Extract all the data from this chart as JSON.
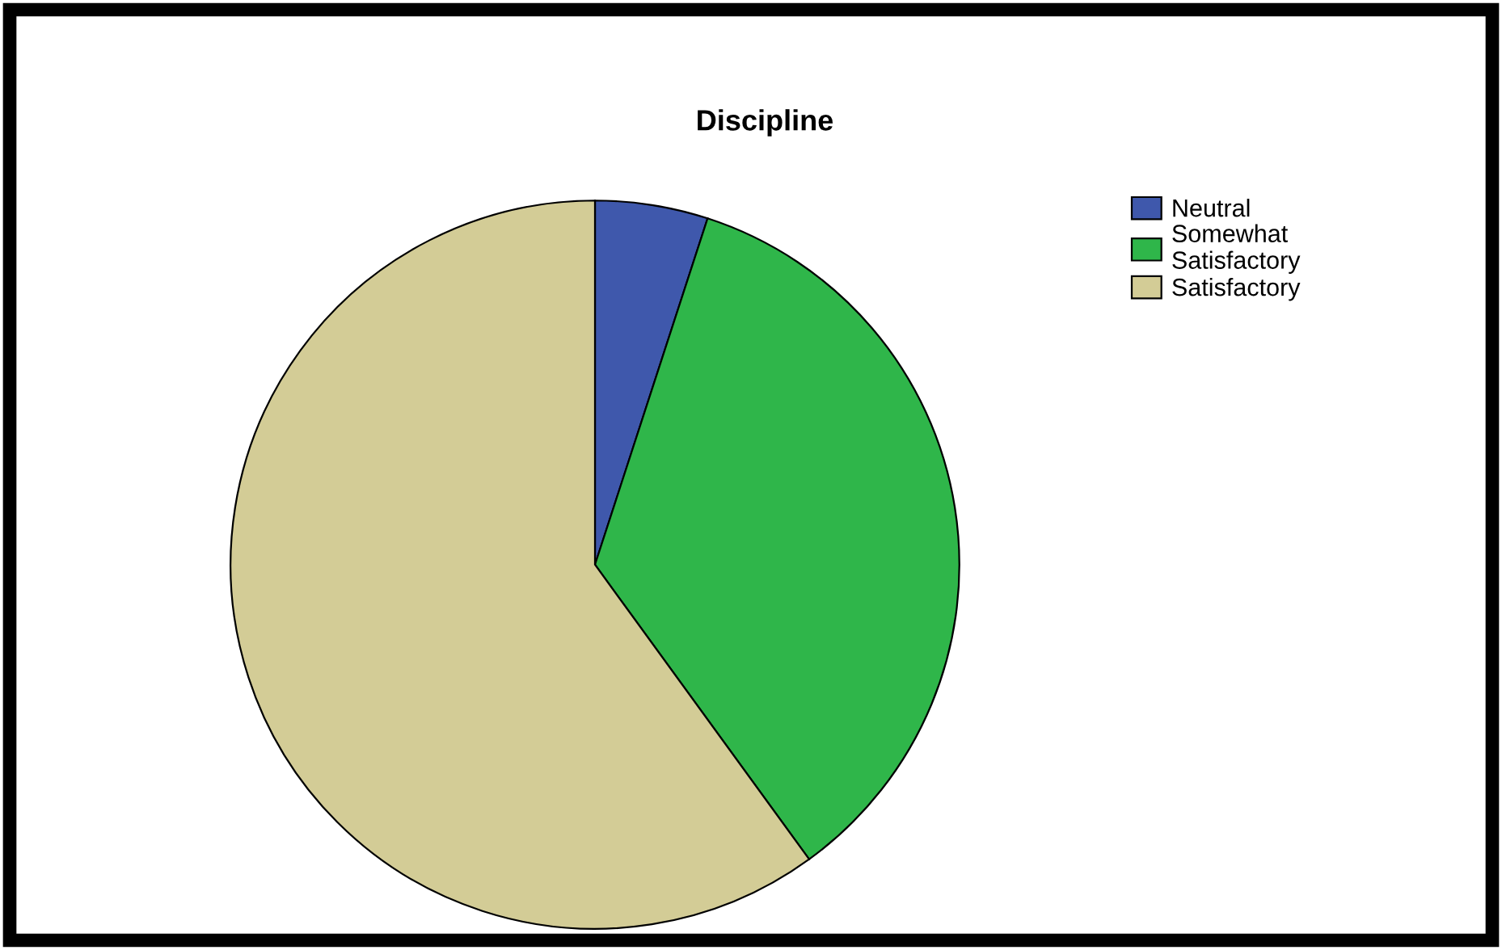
{
  "chart_data": {
    "type": "pie",
    "title": "Discipline",
    "categories": [
      "Neutral",
      "Somewhat\nSatisfactory",
      "Satisfactory"
    ],
    "values": [
      5,
      35,
      60
    ],
    "colors": [
      "#3f58ac",
      "#2fb64a",
      "#d3cc96"
    ],
    "legend": "top right"
  }
}
